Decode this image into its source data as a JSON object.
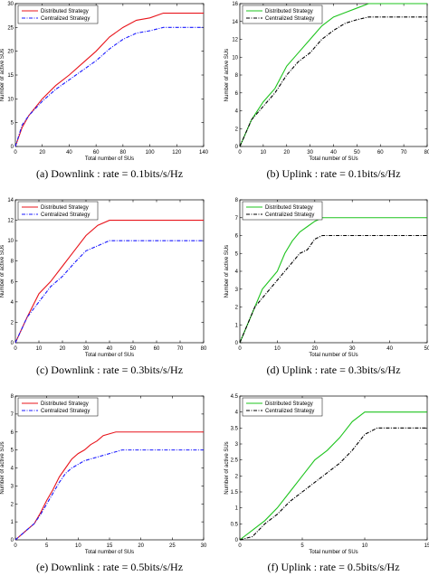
{
  "chart_data": [
    {
      "type": "line",
      "caption": "(a) Downlink : rate = 0.1bits/s/Hz",
      "xlabel": "Total number of SUs",
      "ylabel": "Number of active SUs",
      "xlim": [
        0,
        140
      ],
      "ylim": [
        0,
        30
      ],
      "xticks": [
        0,
        20,
        40,
        60,
        80,
        100,
        120,
        140
      ],
      "yticks": [
        0,
        5,
        10,
        15,
        20,
        25,
        30
      ],
      "legend_position": "top-left",
      "series": [
        {
          "name": "Distributed Strategy",
          "color": "#e8141b",
          "dash": "solid",
          "x": [
            0,
            5,
            10,
            20,
            30,
            40,
            50,
            60,
            70,
            80,
            90,
            100,
            110,
            120,
            130,
            140
          ],
          "y": [
            0,
            4,
            6.5,
            10,
            12.8,
            15,
            17.5,
            20,
            23,
            25,
            26.5,
            27,
            28,
            28,
            28,
            28
          ]
        },
        {
          "name": "Centralized Strategy",
          "color": "#1a1aff",
          "dash": "dashdot",
          "x": [
            0,
            5,
            10,
            20,
            30,
            40,
            50,
            60,
            70,
            80,
            90,
            100,
            110,
            120,
            130,
            140
          ],
          "y": [
            0,
            4.5,
            6.5,
            9.5,
            12,
            14,
            16,
            18,
            20.5,
            22.5,
            23.8,
            24.3,
            25,
            25,
            25,
            25
          ]
        }
      ]
    },
    {
      "type": "line",
      "caption": "(b) Uplink : rate = 0.1bits/s/Hz",
      "xlabel": "Total number of SUs",
      "ylabel": "Number of active SUs",
      "xlim": [
        0,
        80
      ],
      "ylim": [
        0,
        16
      ],
      "xticks": [
        0,
        10,
        20,
        30,
        40,
        50,
        60,
        70,
        80
      ],
      "yticks": [
        0,
        2,
        4,
        6,
        8,
        10,
        12,
        14,
        16
      ],
      "legend_position": "top-left",
      "series": [
        {
          "name": "Distributed Strategy",
          "color": "#1ec41e",
          "dash": "solid",
          "x": [
            0,
            5,
            10,
            15,
            20,
            25,
            30,
            35,
            40,
            45,
            50,
            55,
            60,
            70,
            80
          ],
          "y": [
            0,
            3,
            5,
            6.5,
            9,
            10.5,
            12,
            13.5,
            14.5,
            15,
            15.5,
            16,
            16,
            16,
            16
          ]
        },
        {
          "name": "Centralized Strategy",
          "color": "#000000",
          "dash": "dashdot",
          "x": [
            0,
            5,
            10,
            15,
            20,
            25,
            30,
            35,
            40,
            45,
            50,
            55,
            60,
            70,
            80
          ],
          "y": [
            0,
            3,
            4.5,
            6,
            8,
            9.5,
            10.5,
            12,
            13,
            13.8,
            14.2,
            14.5,
            14.5,
            14.5,
            14.5
          ]
        }
      ]
    },
    {
      "type": "line",
      "caption": "(c) Downlink : rate = 0.3bits/s/Hz",
      "xlabel": "Total number of SUs",
      "ylabel": "Number of active SUs",
      "xlim": [
        0,
        80
      ],
      "ylim": [
        0,
        14
      ],
      "xticks": [
        0,
        10,
        20,
        30,
        40,
        50,
        60,
        70,
        80
      ],
      "yticks": [
        0,
        2,
        4,
        6,
        8,
        10,
        12,
        14
      ],
      "legend_position": "top-left",
      "series": [
        {
          "name": "Distributed Strategy",
          "color": "#e8141b",
          "dash": "solid",
          "x": [
            0,
            5,
            10,
            15,
            20,
            25,
            30,
            35,
            40,
            50,
            60,
            70,
            80
          ],
          "y": [
            0,
            2.5,
            4.8,
            6,
            7.5,
            9,
            10.5,
            11.5,
            12,
            12,
            12,
            12,
            12
          ]
        },
        {
          "name": "Centralized Strategy",
          "color": "#1a1aff",
          "dash": "dashdot",
          "x": [
            0,
            5,
            10,
            15,
            20,
            25,
            30,
            35,
            40,
            50,
            60,
            70,
            80
          ],
          "y": [
            0,
            2.5,
            4,
            5.5,
            6.5,
            7.8,
            9,
            9.5,
            10,
            10,
            10,
            10,
            10
          ]
        }
      ]
    },
    {
      "type": "line",
      "caption": "(d) Uplink : rate = 0.3bits/s/Hz",
      "xlabel": "Total number of SUs",
      "ylabel": "Number of active SUs",
      "xlim": [
        0,
        50
      ],
      "ylim": [
        0,
        8
      ],
      "xticks": [
        0,
        10,
        20,
        30,
        40,
        50
      ],
      "yticks": [
        0,
        1,
        2,
        3,
        4,
        5,
        6,
        7,
        8
      ],
      "legend_position": "top-left",
      "series": [
        {
          "name": "Distributed Strategy",
          "color": "#1ec41e",
          "dash": "solid",
          "x": [
            0,
            2,
            4,
            6,
            8,
            10,
            12,
            14,
            16,
            18,
            20,
            22,
            25,
            30,
            40,
            50
          ],
          "y": [
            0,
            1,
            2,
            3,
            3.5,
            4,
            5,
            5.7,
            6.2,
            6.5,
            6.8,
            7,
            7,
            7,
            7,
            7
          ]
        },
        {
          "name": "Centralized Strategy",
          "color": "#000000",
          "dash": "dashdot",
          "x": [
            0,
            2,
            4,
            6,
            8,
            10,
            12,
            14,
            16,
            18,
            20,
            22,
            25,
            30,
            40,
            50
          ],
          "y": [
            0,
            1,
            2,
            2.5,
            3,
            3.5,
            4,
            4.5,
            5,
            5.2,
            5.8,
            6,
            6,
            6,
            6,
            6
          ]
        }
      ]
    },
    {
      "type": "line",
      "caption": "(e) Downlink : rate = 0.5bits/s/Hz",
      "xlabel": "Total number of SUs",
      "ylabel": "Number of active SUs",
      "xlim": [
        0,
        30
      ],
      "ylim": [
        0,
        8
      ],
      "xticks": [
        0,
        5,
        10,
        15,
        20,
        25,
        30
      ],
      "yticks": [
        0,
        1,
        2,
        3,
        4,
        5,
        6,
        7,
        8
      ],
      "legend_position": "top-left",
      "series": [
        {
          "name": "Distributed Strategy",
          "color": "#e8141b",
          "dash": "solid",
          "x": [
            0,
            1,
            2,
            3,
            4,
            5,
            6,
            7,
            8,
            9,
            10,
            11,
            12,
            13,
            14,
            15,
            16,
            17,
            18,
            20,
            25,
            30
          ],
          "y": [
            0,
            0.3,
            0.6,
            0.9,
            1.5,
            2.2,
            2.8,
            3.5,
            4,
            4.5,
            4.8,
            5,
            5.3,
            5.5,
            5.8,
            5.9,
            6,
            6,
            6,
            6,
            6,
            6
          ]
        },
        {
          "name": "Centralized Strategy",
          "color": "#1a1aff",
          "dash": "dashdot",
          "x": [
            0,
            1,
            2,
            3,
            4,
            5,
            6,
            7,
            8,
            9,
            10,
            11,
            12,
            13,
            14,
            15,
            16,
            17,
            18,
            20,
            25,
            30
          ],
          "y": [
            0,
            0.3,
            0.6,
            0.9,
            1.4,
            2,
            2.6,
            3.2,
            3.7,
            4,
            4.2,
            4.4,
            4.5,
            4.6,
            4.7,
            4.8,
            4.9,
            5,
            5,
            5,
            5,
            5
          ]
        }
      ]
    },
    {
      "type": "line",
      "caption": "(f) Uplink : rate = 0.5bits/s/Hz",
      "xlabel": "Total number of SUs",
      "ylabel": "Number of active SUs",
      "xlim": [
        0,
        15
      ],
      "ylim": [
        0,
        4.5
      ],
      "xticks": [
        0,
        5,
        10,
        15
      ],
      "yticks": [
        0,
        0.5,
        1,
        1.5,
        2,
        2.5,
        3,
        3.5,
        4,
        4.5
      ],
      "legend_position": "top-left",
      "series": [
        {
          "name": "Distributed Strategy",
          "color": "#1ec41e",
          "dash": "solid",
          "x": [
            0,
            1,
            2,
            3,
            4,
            5,
            6,
            7,
            8,
            9,
            10,
            11,
            12,
            13,
            14,
            15
          ],
          "y": [
            0,
            0.3,
            0.6,
            1,
            1.5,
            2,
            2.5,
            2.8,
            3.2,
            3.7,
            4,
            4,
            4,
            4,
            4,
            4
          ]
        },
        {
          "name": "Centralized Strategy",
          "color": "#000000",
          "dash": "dashdot",
          "x": [
            0,
            1,
            2,
            3,
            4,
            5,
            6,
            7,
            8,
            9,
            10,
            11,
            12,
            13,
            14,
            15
          ],
          "y": [
            0,
            0.1,
            0.5,
            0.8,
            1.2,
            1.5,
            1.8,
            2.1,
            2.4,
            2.8,
            3.3,
            3.5,
            3.5,
            3.5,
            3.5,
            3.5
          ]
        }
      ]
    }
  ]
}
